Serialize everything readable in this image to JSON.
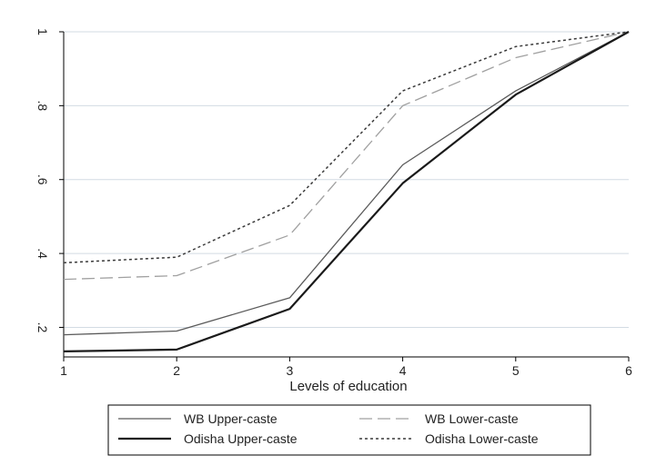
{
  "chart_data": {
    "type": "line",
    "title": "",
    "xlabel": "Levels of education",
    "ylabel": "",
    "x": [
      1,
      2,
      3,
      4,
      5,
      6
    ],
    "xticks": [
      "1",
      "2",
      "3",
      "4",
      "5",
      "6"
    ],
    "yticks": [
      {
        "value": 0.2,
        "label": ".2"
      },
      {
        "value": 0.4,
        "label": ".4"
      },
      {
        "value": 0.6,
        "label": ".6"
      },
      {
        "value": 0.8,
        "label": ".8"
      },
      {
        "value": 1.0,
        "label": "1"
      }
    ],
    "xlim": [
      1,
      6
    ],
    "ylim": [
      0.12,
      1.0
    ],
    "grid": true,
    "legend_position": "bottom",
    "series": [
      {
        "name": "WB Upper-caste",
        "style": "solid-thin",
        "color": "#5a5a5a",
        "values": [
          0.18,
          0.19,
          0.28,
          0.64,
          0.84,
          1.0
        ]
      },
      {
        "name": "WB Lower-caste",
        "style": "longdash",
        "color": "#a0a0a0",
        "values": [
          0.33,
          0.34,
          0.45,
          0.8,
          0.93,
          1.0
        ]
      },
      {
        "name": "Odisha Upper-caste",
        "style": "solid-thick",
        "color": "#1a1a1a",
        "values": [
          0.135,
          0.14,
          0.25,
          0.59,
          0.83,
          1.0
        ]
      },
      {
        "name": "Odisha Lower-caste",
        "style": "shortdash",
        "color": "#3a3a3a",
        "values": [
          0.375,
          0.39,
          0.53,
          0.84,
          0.96,
          1.0
        ]
      }
    ]
  },
  "colors": {
    "grid": "#d3dbe3",
    "axis": "#000000"
  }
}
